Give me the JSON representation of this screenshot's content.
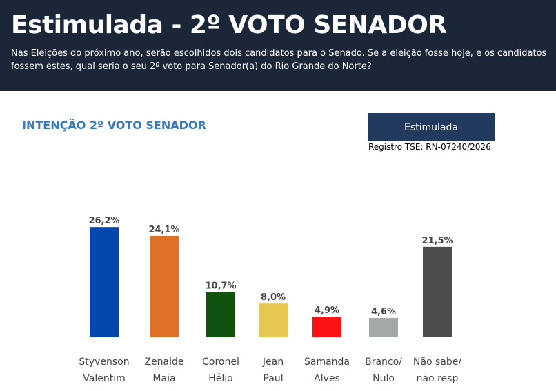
{
  "header": {
    "title": "Estimulada - 2º VOTO SENADOR",
    "subtitle": "Nas Eleições do próximo ano, serão escolhidos dois candidatos para o Senado. Se a eleição fosse hoje, e os candidatos fossem estes, qual seria o seu 2º voto  para Senador(a) do Rio Grande do Norte?"
  },
  "section_title": "INTENÇÃO  2º VOTO SENADOR",
  "badge": "Estimulada",
  "registro": "Registro TSE: RN-07240/2026",
  "chart_data": {
    "type": "bar",
    "title": "INTENÇÃO  2º VOTO SENADOR",
    "categories": [
      [
        "Styvenson",
        "Valentim"
      ],
      [
        "Zenaide",
        "Maia"
      ],
      [
        "Coronel",
        "Hélio"
      ],
      [
        "Jean",
        "Paul"
      ],
      [
        "Samanda",
        "Alves"
      ],
      [
        "Branco/",
        "Nulo"
      ],
      [
        "Não sabe/",
        "não resp"
      ]
    ],
    "values": [
      26.2,
      24.1,
      10.7,
      8.0,
      4.9,
      4.6,
      21.5
    ],
    "labels": [
      "26,2%",
      "24,1%",
      "10,7%",
      "8,0%",
      "4,9%",
      "4,6%",
      "21,5%"
    ],
    "colors": [
      "#0347ad",
      "#df7027",
      "#12520f",
      "#e6c752",
      "#fb1212",
      "#a5a8a8",
      "#4d4d4d"
    ],
    "grid": false
  }
}
